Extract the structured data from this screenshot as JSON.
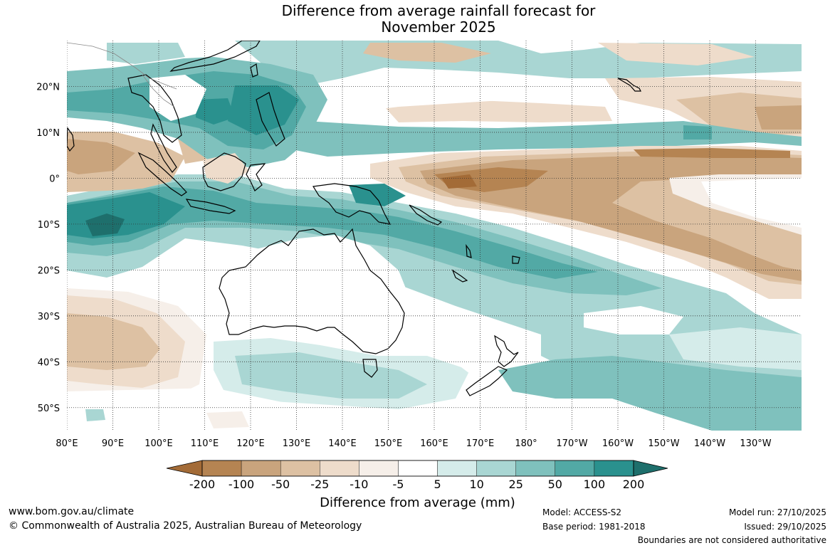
{
  "title": {
    "line1": "Difference from average rainfall forecast for",
    "line2": "November 2025"
  },
  "map": {
    "lat_labels": [
      "20°N",
      "10°N",
      "0°",
      "10°S",
      "20°S",
      "30°S",
      "40°S",
      "50°S"
    ],
    "lon_labels": [
      "80°E",
      "90°E",
      "100°E",
      "110°E",
      "120°E",
      "130°E",
      "140°E",
      "150°E",
      "160°E",
      "170°E",
      "180°",
      "170°W",
      "160°W",
      "150°W",
      "140°W",
      "130°W"
    ],
    "lat_values": [
      20,
      10,
      0,
      -10,
      -20,
      -30,
      -40,
      -50
    ],
    "lon_values": [
      80,
      90,
      100,
      110,
      120,
      130,
      140,
      150,
      160,
      170,
      180,
      190,
      200,
      210,
      220,
      230
    ],
    "extent": {
      "lon_min": 80,
      "lon_max": 240,
      "lat_min": -55,
      "lat_max": 30
    }
  },
  "colorbar": {
    "labels": [
      "-200",
      "-100",
      "-50",
      "-25",
      "-10",
      "-5",
      "5",
      "10",
      "25",
      "50",
      "100",
      "200"
    ],
    "colors": [
      "#a36b37",
      "#b58452",
      "#c9a47d",
      "#ddc1a3",
      "#eedccb",
      "#f6efe9",
      "#ffffff",
      "#d5ecea",
      "#a9d6d3",
      "#7fc1bd",
      "#52a9a5",
      "#2a918e",
      "#1e6f6c"
    ],
    "title": "Difference from average (mm)"
  },
  "footer": {
    "website": "www.bom.gov.au/climate",
    "copyright": "© Commonwealth of Australia 2025, Australian Bureau of Meteorology",
    "model": "Model: ACCESS-S2",
    "base_period": "Base period: 1981-2018",
    "model_run": "Model run: 27/10/2025",
    "issued": "Issued: 29/10/2025",
    "disclaimer": "Boundaries are not considered authoritative"
  }
}
